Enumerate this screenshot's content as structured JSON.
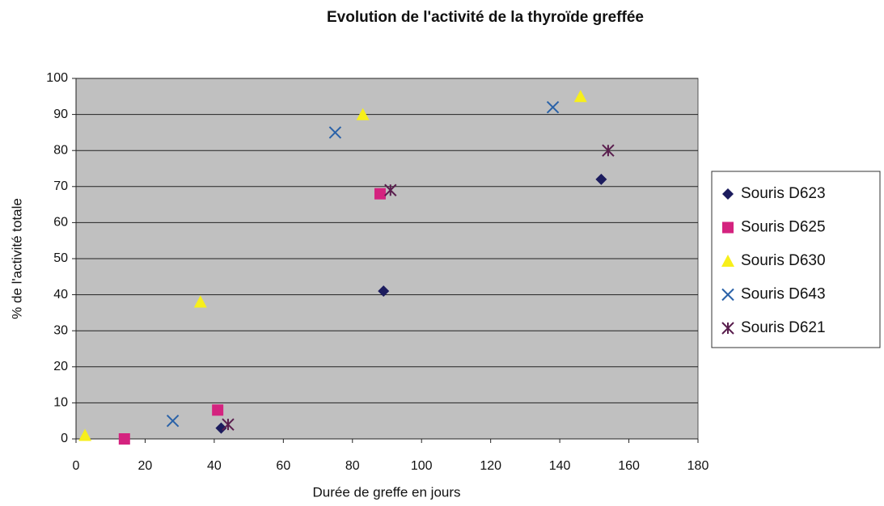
{
  "chart_data": {
    "type": "scatter",
    "title": "Evolution de l'activité de la thyroïde greffée",
    "x_label": "Durée de greffe en jours",
    "y_label": "% de l'activité totale",
    "xlim": [
      0,
      180
    ],
    "xticks": [
      0,
      20,
      40,
      60,
      80,
      100,
      120,
      140,
      160,
      180
    ],
    "ylim": [
      0,
      100
    ],
    "yticks": [
      0,
      10,
      20,
      30,
      40,
      50,
      60,
      70,
      80,
      90,
      100
    ],
    "grid": true,
    "legend": "right",
    "series": [
      {
        "name": "Souris D623",
        "color": "#1c1c5e",
        "marker": "diamond",
        "x": [
          14,
          42,
          89,
          152
        ],
        "values": [
          0,
          3,
          41,
          72
        ]
      },
      {
        "name": "Souris D625",
        "color": "#d4237f",
        "marker": "square",
        "x": [
          14,
          41,
          88
        ],
        "values": [
          0,
          8,
          68
        ]
      },
      {
        "name": "Souris D630",
        "color": "#f7ef1a",
        "marker": "triangle",
        "x": [
          2.6,
          36,
          83,
          146
        ],
        "values": [
          1,
          38,
          90,
          95
        ]
      },
      {
        "name": "Souris D643",
        "color": "#2a62a8",
        "marker": "x",
        "x": [
          28,
          75,
          138
        ],
        "values": [
          5,
          85,
          92
        ]
      },
      {
        "name": "Souris D621",
        "color": "#5a1e4e",
        "marker": "star",
        "x": [
          44,
          91,
          154
        ],
        "values": [
          4,
          69,
          80
        ]
      }
    ]
  }
}
